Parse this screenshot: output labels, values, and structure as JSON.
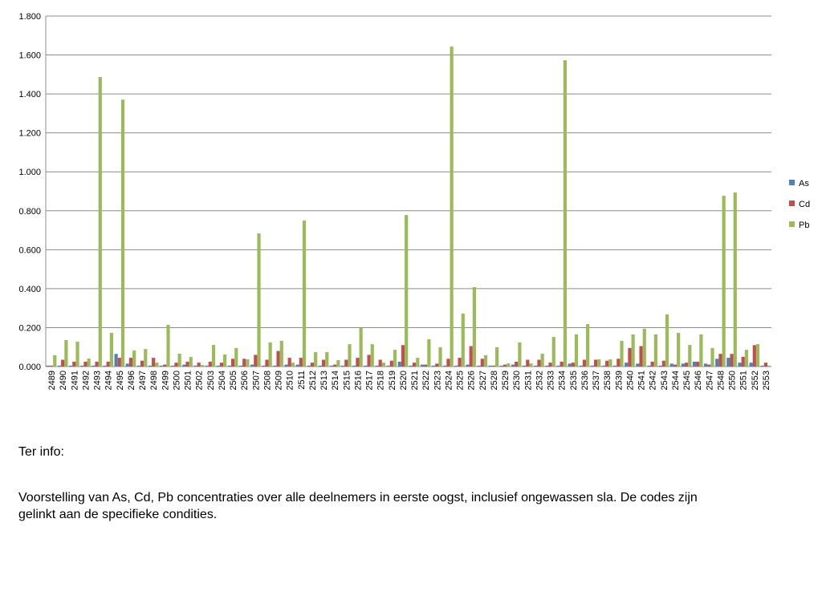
{
  "chart_data": {
    "type": "bar",
    "categories": [
      "2489",
      "2490",
      "2491",
      "2492",
      "2493",
      "2494",
      "2495",
      "2496",
      "2497",
      "2498",
      "2499",
      "2500",
      "2501",
      "2502",
      "2503",
      "2504",
      "2505",
      "2506",
      "2507",
      "2508",
      "2509",
      "2510",
      "2511",
      "2512",
      "2513",
      "2514",
      "2515",
      "2516",
      "2517",
      "2518",
      "2519",
      "2520",
      "2521",
      "2522",
      "2523",
      "2524",
      "2525",
      "2526",
      "2527",
      "2528",
      "2529",
      "2530",
      "2531",
      "2532",
      "2533",
      "2534",
      "2535",
      "2536",
      "2537",
      "2538",
      "2539",
      "2540",
      "2541",
      "2542",
      "2543",
      "2544",
      "2545",
      "2546",
      "2547",
      "2548",
      "2550",
      "2551",
      "2552",
      "2553"
    ],
    "series": [
      {
        "name": "As",
        "color": "#4f81bd",
        "values": [
          0.005,
          0.005,
          0.005,
          0.005,
          0.005,
          0.005,
          0.065,
          0.015,
          0.005,
          0.005,
          0.005,
          0.005,
          0.01,
          0.005,
          0.005,
          0.005,
          0.005,
          0.005,
          0.01,
          0.005,
          0.005,
          0.01,
          0.01,
          0.005,
          0.005,
          0.005,
          0.005,
          0.005,
          0.005,
          0.005,
          0.005,
          0.025,
          0.005,
          0.01,
          0.005,
          0.005,
          0.005,
          0.01,
          0.005,
          0.005,
          0.005,
          0.01,
          0.005,
          0.005,
          0.005,
          0.005,
          0.015,
          0.005,
          0.005,
          0.005,
          0.005,
          0.02,
          0.015,
          0.005,
          0.005,
          0.015,
          0.015,
          0.025,
          0.015,
          0.04,
          0.045,
          0.02,
          0.02,
          0.005
        ]
      },
      {
        "name": "Cd",
        "color": "#c0504d",
        "values": [
          0.005,
          0.035,
          0.025,
          0.025,
          0.025,
          0.025,
          0.045,
          0.045,
          0.03,
          0.045,
          0.01,
          0.02,
          0.025,
          0.02,
          0.025,
          0.02,
          0.04,
          0.04,
          0.06,
          0.035,
          0.08,
          0.045,
          0.045,
          0.02,
          0.035,
          0.01,
          0.035,
          0.045,
          0.06,
          0.035,
          0.03,
          0.11,
          0.02,
          0.01,
          0.015,
          0.04,
          0.045,
          0.105,
          0.04,
          0.005,
          0.01,
          0.025,
          0.035,
          0.035,
          0.02,
          0.025,
          0.02,
          0.035,
          0.035,
          0.03,
          0.04,
          0.095,
          0.105,
          0.025,
          0.03,
          0.01,
          0.02,
          0.025,
          0.01,
          0.065,
          0.065,
          0.05,
          0.11,
          0.02
        ]
      },
      {
        "name": "Pb",
        "color": "#9bbb59",
        "values": [
          0.058,
          0.136,
          0.128,
          0.041,
          1.487,
          0.173,
          1.371,
          0.082,
          0.09,
          0.02,
          0.214,
          0.066,
          0.049,
          0.008,
          0.111,
          0.062,
          0.095,
          0.037,
          0.684,
          0.124,
          0.132,
          0.02,
          0.75,
          0.074,
          0.074,
          0.033,
          0.115,
          0.198,
          0.115,
          0.02,
          0.086,
          0.778,
          0.045,
          0.14,
          0.099,
          1.643,
          0.272,
          0.408,
          0.058,
          0.099,
          0.016,
          0.124,
          0.016,
          0.066,
          0.152,
          1.573,
          0.165,
          0.218,
          0.037,
          0.037,
          0.132,
          0.165,
          0.194,
          0.165,
          0.268,
          0.173,
          0.111,
          0.165,
          0.095,
          0.877,
          0.894,
          0.086,
          0.115,
          0.005
        ]
      }
    ],
    "ylim": [
      0,
      1.8
    ],
    "yticks": [
      {
        "value": 0,
        "label": "0.000"
      },
      {
        "value": 0.2,
        "label": "0.200"
      },
      {
        "value": 0.4,
        "label": "0.400"
      },
      {
        "value": 0.6,
        "label": "0.600"
      },
      {
        "value": 0.8,
        "label": "0.800"
      },
      {
        "value": 1.0,
        "label": "1.000"
      },
      {
        "value": 1.2,
        "label": "1.200"
      },
      {
        "value": 1.4,
        "label": "1.400"
      },
      {
        "value": 1.6,
        "label": "1.600"
      },
      {
        "value": 1.8,
        "label": "1.800"
      }
    ],
    "grid": true,
    "legend": "right"
  },
  "notes": {
    "heading": "Ter info:",
    "body": "Voorstelling van As, Cd, Pb concentraties over alle deelnemers in eerste oogst, inclusief ongewassen sla. De codes zijn gelinkt aan de specifieke condities."
  }
}
